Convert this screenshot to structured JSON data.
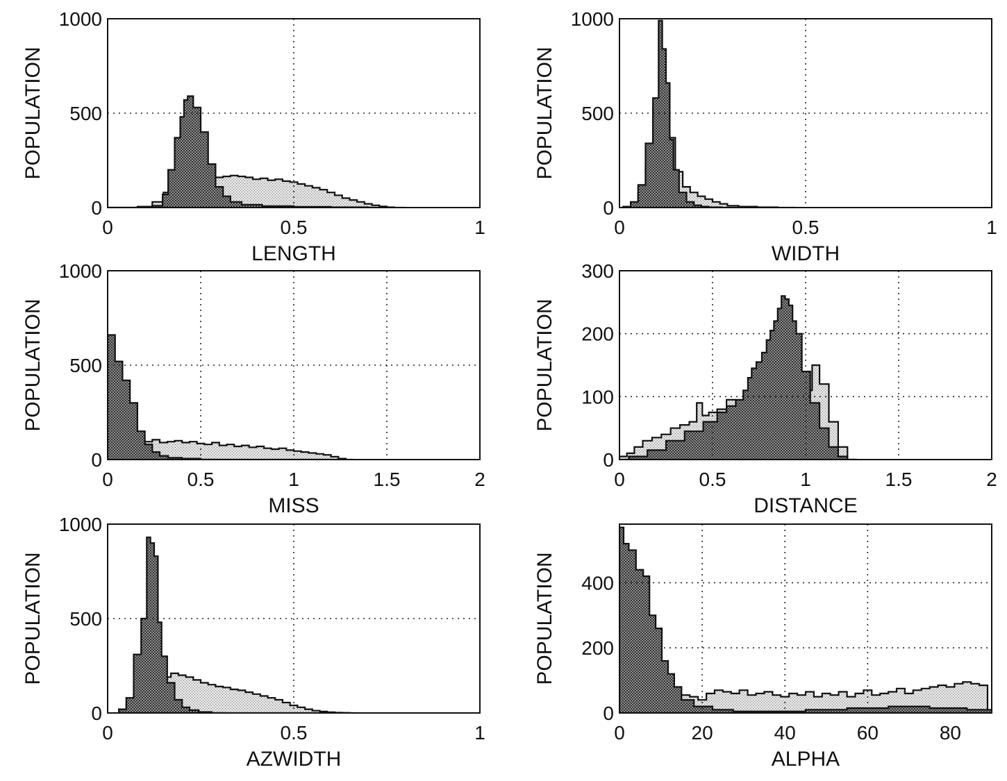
{
  "chart_data": [
    {
      "type": "histogram",
      "xlabel": "LENGTH",
      "ylabel": "POPULATION",
      "xlim": [
        0,
        1
      ],
      "ylim": [
        0,
        1000
      ],
      "xticks": [
        0,
        0.5,
        1
      ],
      "xtick_labels": [
        "0",
        "0.5",
        "1"
      ],
      "yticks": [
        0,
        500,
        1000
      ],
      "ytick_labels": [
        "0",
        "500",
        "1000"
      ],
      "grid": true,
      "series": [
        {
          "style": "dense-hatch",
          "x": [
            0.02,
            0.06,
            0.1,
            0.14,
            0.155,
            0.17,
            0.19,
            0.2,
            0.21,
            0.22,
            0.24,
            0.26,
            0.28,
            0.3,
            0.32,
            0.34,
            0.38,
            0.45,
            0.55,
            0.65,
            0.75
          ],
          "y": [
            0,
            0,
            0,
            10,
            70,
            200,
            370,
            480,
            570,
            590,
            530,
            400,
            230,
            110,
            60,
            30,
            15,
            8,
            4,
            2,
            0
          ]
        },
        {
          "style": "light-stipple",
          "x": [
            0.02,
            0.06,
            0.1,
            0.14,
            0.16,
            0.18,
            0.2,
            0.22,
            0.24,
            0.26,
            0.28,
            0.3,
            0.32,
            0.34,
            0.36,
            0.38,
            0.4,
            0.42,
            0.44,
            0.46,
            0.48,
            0.5,
            0.52,
            0.54,
            0.56,
            0.58,
            0.6,
            0.62,
            0.64,
            0.66,
            0.68,
            0.7,
            0.72,
            0.74,
            0.76
          ],
          "y": [
            0,
            0,
            5,
            30,
            80,
            110,
            125,
            135,
            140,
            140,
            150,
            160,
            165,
            170,
            165,
            160,
            150,
            155,
            145,
            150,
            140,
            135,
            125,
            115,
            105,
            95,
            80,
            65,
            50,
            40,
            30,
            20,
            12,
            6,
            2
          ]
        }
      ]
    },
    {
      "type": "histogram",
      "xlabel": "WIDTH",
      "ylabel": "POPULATION",
      "xlim": [
        0,
        1
      ],
      "ylim": [
        0,
        1000
      ],
      "xticks": [
        0,
        0.5,
        1
      ],
      "xtick_labels": [
        "0",
        "0.5",
        "1"
      ],
      "yticks": [
        0,
        500,
        1000
      ],
      "ytick_labels": [
        "0",
        "500",
        "1000"
      ],
      "grid": true,
      "series": [
        {
          "style": "dense-hatch",
          "x": [
            0.02,
            0.04,
            0.06,
            0.08,
            0.1,
            0.11,
            0.12,
            0.13,
            0.14,
            0.15,
            0.17,
            0.19,
            0.21,
            0.23,
            0.25,
            0.3
          ],
          "y": [
            5,
            30,
            120,
            340,
            580,
            990,
            840,
            660,
            360,
            200,
            80,
            30,
            12,
            5,
            2,
            0
          ]
        },
        {
          "style": "light-stipple",
          "x": [
            0.02,
            0.04,
            0.06,
            0.08,
            0.1,
            0.12,
            0.14,
            0.16,
            0.18,
            0.2,
            0.22,
            0.24,
            0.26,
            0.28,
            0.3,
            0.34,
            0.4,
            0.45
          ],
          "y": [
            5,
            20,
            80,
            220,
            530,
            580,
            370,
            190,
            110,
            80,
            60,
            45,
            30,
            20,
            10,
            5,
            2,
            0
          ]
        }
      ]
    },
    {
      "type": "histogram",
      "xlabel": "MISS",
      "ylabel": "POPULATION",
      "xlim": [
        0,
        2
      ],
      "ylim": [
        0,
        1000
      ],
      "xticks": [
        0,
        0.5,
        1,
        1.5,
        2
      ],
      "xtick_labels": [
        "0",
        "0.5",
        "1",
        "1.5",
        "2"
      ],
      "yticks": [
        0,
        500,
        1000
      ],
      "ytick_labels": [
        "0",
        "500",
        "1000"
      ],
      "grid": true,
      "series": [
        {
          "style": "dense-hatch",
          "x": [
            0.02,
            0.06,
            0.1,
            0.14,
            0.18,
            0.22,
            0.26,
            0.3,
            0.35,
            0.45,
            0.55
          ],
          "y": [
            660,
            520,
            420,
            300,
            150,
            80,
            40,
            20,
            10,
            5,
            0
          ]
        },
        {
          "style": "light-stipple",
          "x": [
            0.02,
            0.06,
            0.1,
            0.14,
            0.18,
            0.22,
            0.26,
            0.3,
            0.34,
            0.38,
            0.42,
            0.46,
            0.5,
            0.54,
            0.58,
            0.62,
            0.66,
            0.7,
            0.74,
            0.78,
            0.82,
            0.86,
            0.9,
            0.94,
            0.98,
            1.02,
            1.06,
            1.1,
            1.14,
            1.18,
            1.22,
            1.26,
            1.3
          ],
          "y": [
            110,
            115,
            110,
            120,
            100,
            95,
            105,
            90,
            95,
            100,
            90,
            95,
            85,
            80,
            90,
            75,
            80,
            70,
            75,
            65,
            70,
            60,
            55,
            60,
            50,
            45,
            40,
            35,
            30,
            25,
            15,
            5,
            0
          ]
        }
      ]
    },
    {
      "type": "histogram",
      "xlabel": "DISTANCE",
      "ylabel": "POPULATION",
      "xlim": [
        0,
        2
      ],
      "ylim": [
        0,
        300
      ],
      "xticks": [
        0,
        0.5,
        1,
        1.5,
        2
      ],
      "xtick_labels": [
        "0",
        "0.5",
        "1",
        "1.5",
        "2"
      ],
      "yticks": [
        0,
        100,
        200,
        300
      ],
      "ytick_labels": [
        "0",
        "100",
        "200",
        "300"
      ],
      "grid": true,
      "series": [
        {
          "style": "dense-hatch",
          "x": [
            0.1,
            0.2,
            0.3,
            0.4,
            0.5,
            0.55,
            0.6,
            0.65,
            0.68,
            0.7,
            0.72,
            0.75,
            0.78,
            0.8,
            0.82,
            0.84,
            0.86,
            0.88,
            0.9,
            0.92,
            0.94,
            0.96,
            1.0,
            1.05,
            1.1,
            1.15,
            1.2,
            1.25
          ],
          "y": [
            5,
            15,
            30,
            45,
            60,
            75,
            85,
            95,
            110,
            130,
            145,
            155,
            170,
            190,
            205,
            220,
            240,
            260,
            255,
            245,
            220,
            200,
            140,
            90,
            50,
            20,
            5,
            0
          ]
        },
        {
          "style": "light-stipple",
          "x": [
            0.02,
            0.06,
            0.1,
            0.15,
            0.2,
            0.25,
            0.3,
            0.35,
            0.4,
            0.43,
            0.46,
            0.5,
            0.55,
            0.6,
            0.65,
            0.7,
            0.75,
            0.8,
            0.85,
            0.9,
            0.95,
            1.0,
            1.02,
            1.05,
            1.1,
            1.15,
            1.2,
            1.25
          ],
          "y": [
            5,
            10,
            20,
            30,
            35,
            40,
            50,
            55,
            60,
            90,
            70,
            75,
            80,
            95,
            90,
            100,
            105,
            110,
            115,
            120,
            125,
            140,
            110,
            150,
            120,
            60,
            20,
            0
          ]
        }
      ]
    },
    {
      "type": "histogram",
      "xlabel": "AZWIDTH",
      "ylabel": "POPULATION",
      "xlim": [
        0,
        1
      ],
      "ylim": [
        0,
        1000
      ],
      "xticks": [
        0,
        0.5,
        1
      ],
      "xtick_labels": [
        "0",
        "0.5",
        "1"
      ],
      "yticks": [
        0,
        500,
        1000
      ],
      "ytick_labels": [
        "0",
        "500",
        "1000"
      ],
      "grid": true,
      "series": [
        {
          "style": "dense-hatch",
          "x": [
            0.04,
            0.06,
            0.08,
            0.1,
            0.11,
            0.12,
            0.13,
            0.14,
            0.15,
            0.17,
            0.19,
            0.21,
            0.23,
            0.26,
            0.3
          ],
          "y": [
            20,
            80,
            310,
            500,
            930,
            900,
            830,
            480,
            300,
            160,
            70,
            30,
            15,
            5,
            0
          ]
        },
        {
          "style": "light-stipple",
          "x": [
            0.04,
            0.06,
            0.08,
            0.1,
            0.12,
            0.14,
            0.16,
            0.18,
            0.2,
            0.22,
            0.24,
            0.26,
            0.28,
            0.3,
            0.32,
            0.34,
            0.36,
            0.38,
            0.4,
            0.42,
            0.44,
            0.46,
            0.48,
            0.5,
            0.52,
            0.54,
            0.56,
            0.58,
            0.6,
            0.62,
            0.64,
            0.66
          ],
          "y": [
            10,
            50,
            100,
            200,
            230,
            210,
            190,
            210,
            200,
            190,
            175,
            160,
            150,
            140,
            135,
            125,
            120,
            110,
            100,
            90,
            80,
            70,
            55,
            40,
            30,
            20,
            12,
            8,
            4,
            2,
            1,
            0
          ]
        }
      ]
    },
    {
      "type": "histogram",
      "xlabel": "ALPHA",
      "ylabel": "POPULATION",
      "xlim": [
        0,
        90
      ],
      "ylim": [
        0,
        580
      ],
      "xticks": [
        0,
        20,
        40,
        60,
        80
      ],
      "xtick_labels": [
        "0",
        "20",
        "40",
        "60",
        "80"
      ],
      "yticks": [
        0,
        200,
        400
      ],
      "ytick_labels": [
        "0",
        "200",
        "400"
      ],
      "grid": true,
      "series": [
        {
          "style": "dense-hatch",
          "x": [
            0.5,
            1.5,
            3,
            5,
            6.5,
            8,
            9.5,
            11,
            12.5,
            14,
            16,
            20,
            25,
            30,
            40,
            50,
            60,
            70,
            80,
            88
          ],
          "y": [
            570,
            520,
            500,
            440,
            420,
            300,
            260,
            160,
            120,
            80,
            40,
            20,
            10,
            5,
            5,
            10,
            15,
            20,
            15,
            10
          ]
        },
        {
          "style": "light-stipple",
          "x": [
            0.5,
            2,
            4,
            6,
            8,
            10,
            12,
            14,
            16,
            18,
            20,
            22,
            24,
            26,
            28,
            30,
            32,
            34,
            36,
            38,
            40,
            42,
            44,
            46,
            48,
            50,
            52,
            54,
            56,
            58,
            60,
            62,
            64,
            66,
            68,
            70,
            72,
            74,
            76,
            78,
            80,
            82,
            84,
            86,
            88
          ],
          "y": [
            80,
            50,
            70,
            90,
            60,
            70,
            55,
            60,
            55,
            50,
            40,
            60,
            70,
            65,
            60,
            70,
            55,
            60,
            65,
            55,
            50,
            60,
            55,
            65,
            50,
            60,
            55,
            65,
            50,
            60,
            70,
            55,
            60,
            65,
            75,
            60,
            70,
            75,
            80,
            85,
            80,
            90,
            95,
            90,
            85
          ]
        }
      ]
    }
  ]
}
